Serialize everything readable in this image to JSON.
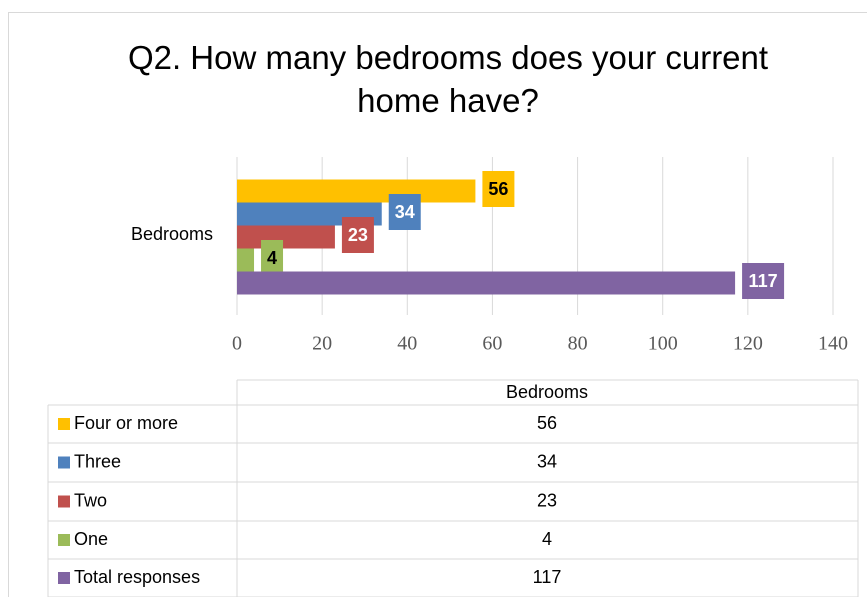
{
  "chart_data": {
    "type": "bar",
    "orientation": "horizontal",
    "title": "Q2. How many bedrooms does your current home have?",
    "categories": [
      "Bedrooms"
    ],
    "series": [
      {
        "name": "Four or more",
        "color": "#ffc000",
        "values": [
          56
        ]
      },
      {
        "name": "Three",
        "color": "#4f81bd",
        "values": [
          34
        ]
      },
      {
        "name": "Two",
        "color": "#c0504d",
        "values": [
          23
        ]
      },
      {
        "name": "One",
        "color": "#9bbb59",
        "values": [
          4
        ]
      },
      {
        "name": "Total responses",
        "color": "#8064a2",
        "values": [
          117
        ]
      }
    ],
    "xlim": [
      0,
      140
    ],
    "xticks": [
      0,
      20,
      40,
      60,
      80,
      100,
      120,
      140
    ],
    "grid": true,
    "data_labels": true,
    "data_table": true
  }
}
